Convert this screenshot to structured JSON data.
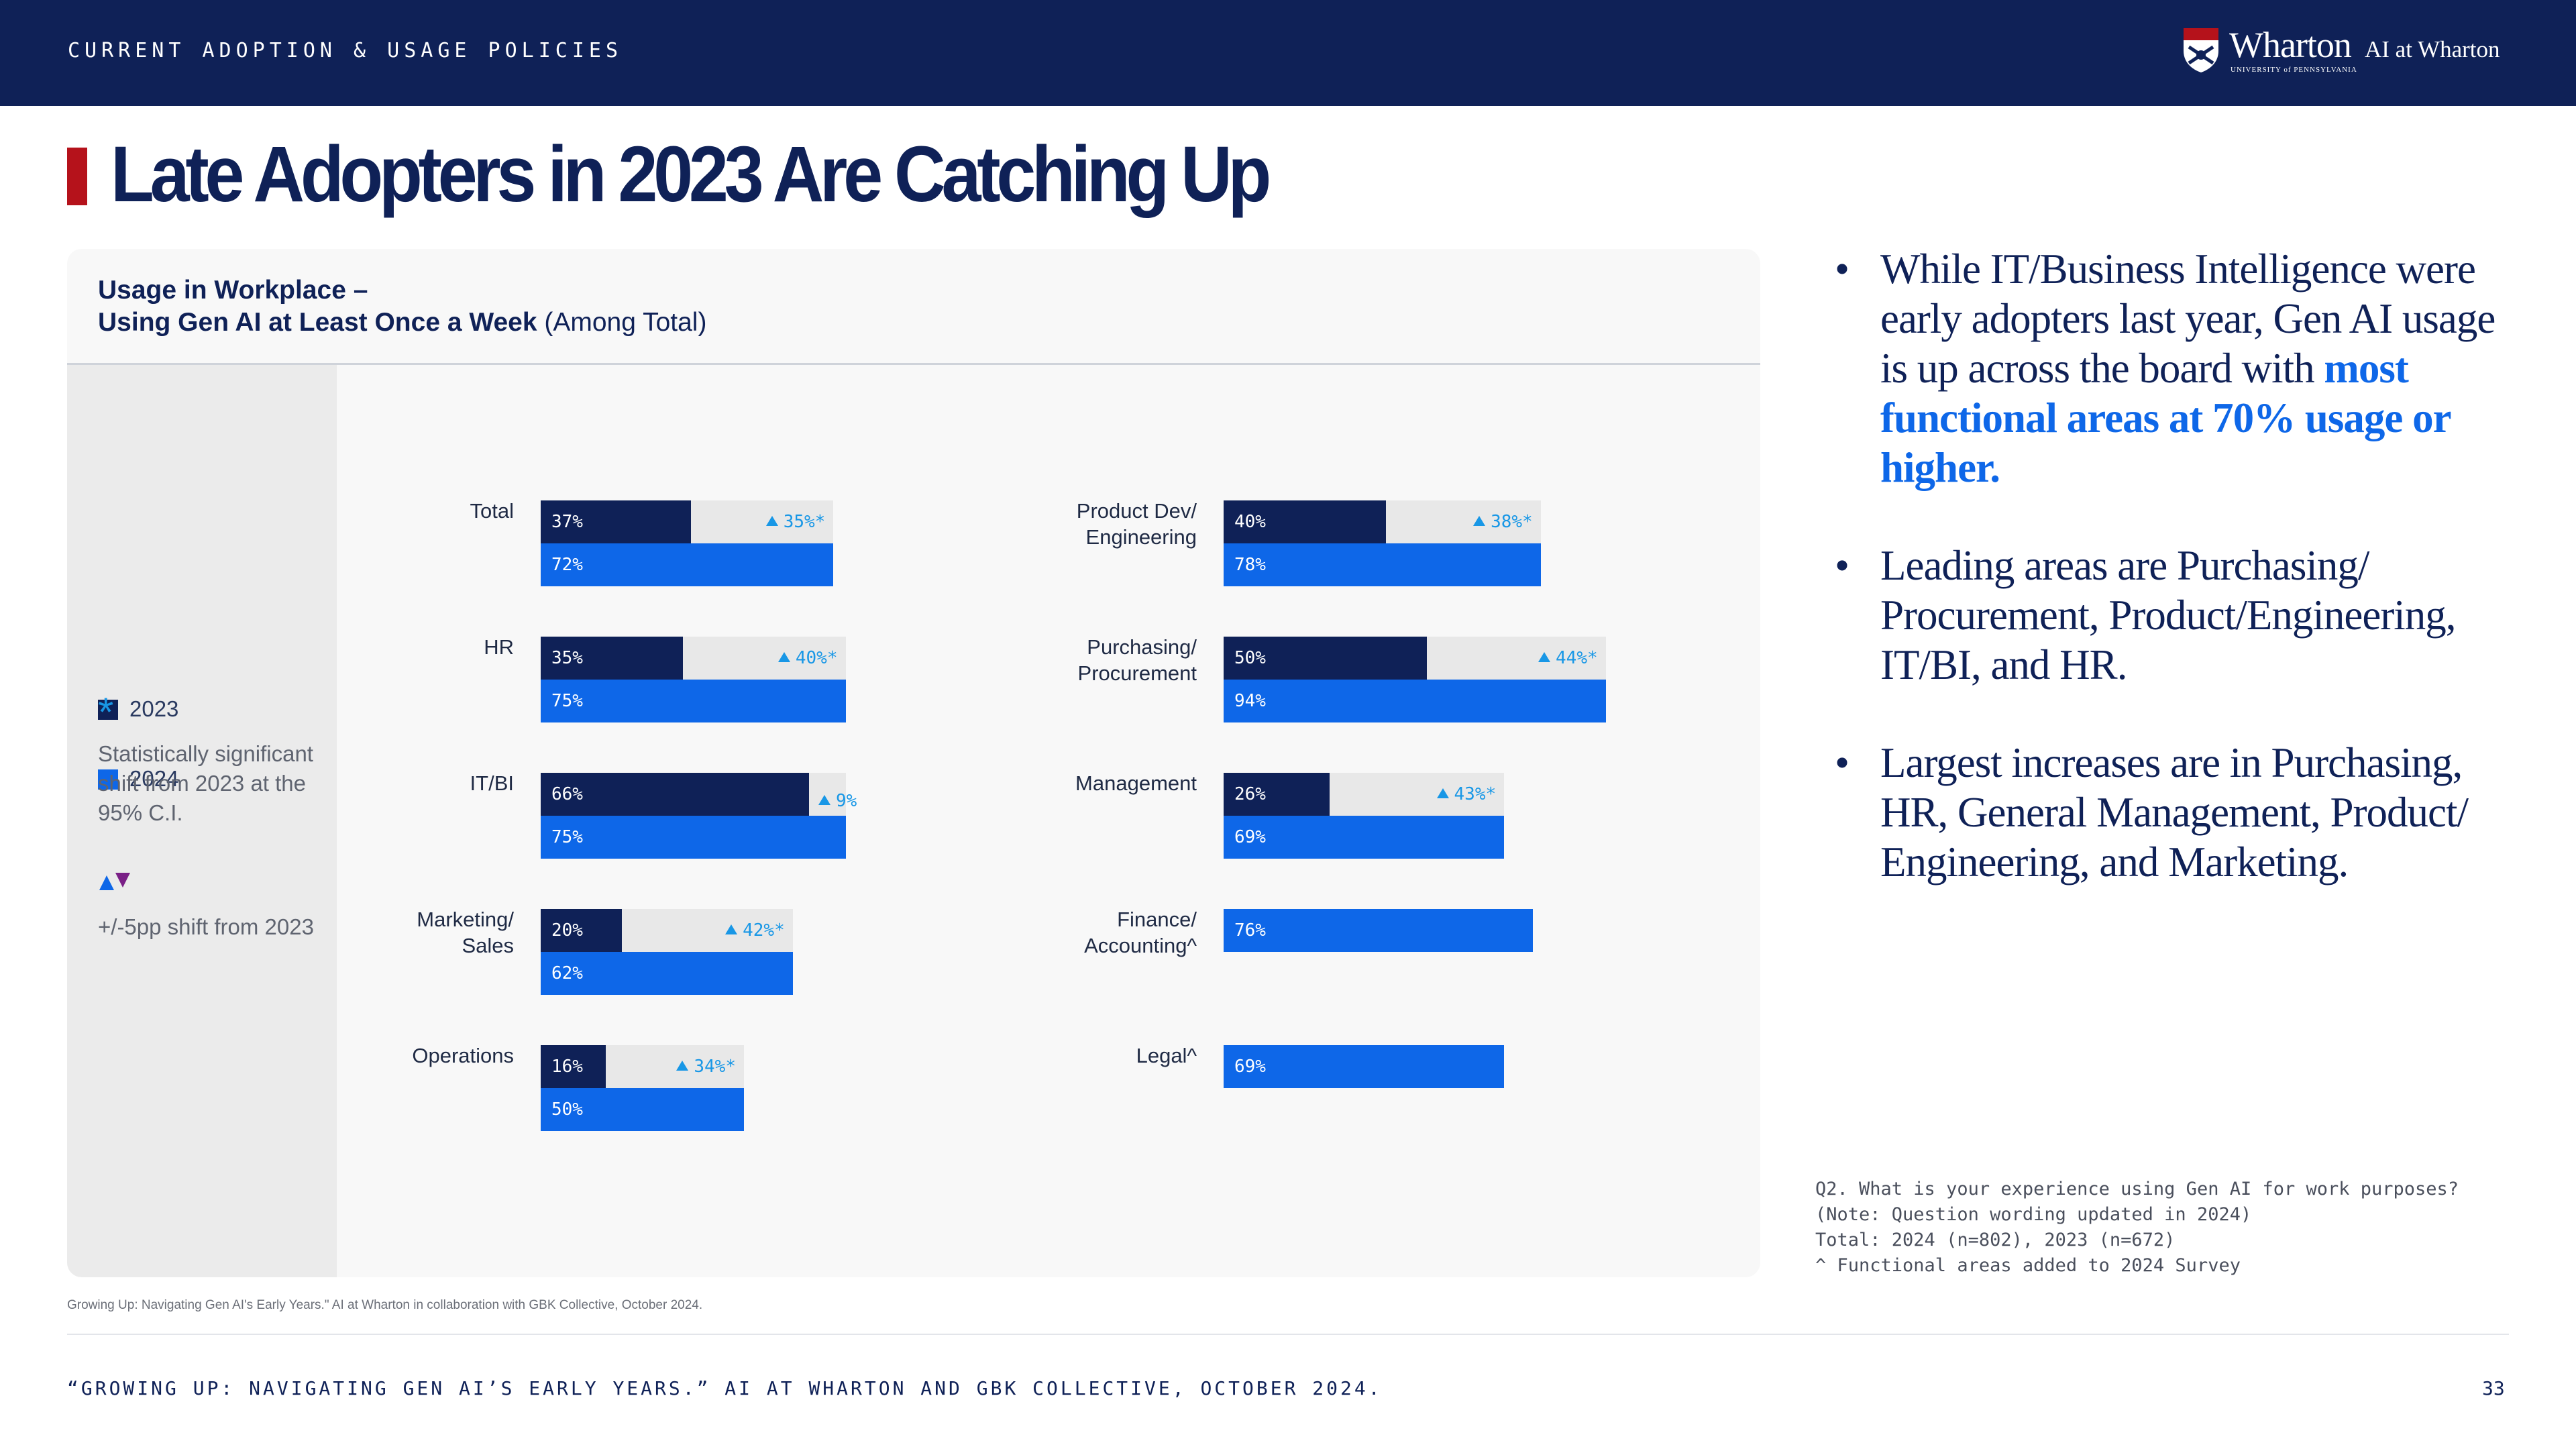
{
  "header": {
    "section_label": "CURRENT ADOPTION & USAGE POLICIES",
    "logo_wordmark": "Wharton",
    "logo_subtext": "UNIVERSITY of PENNSYLVANIA",
    "logo_tag": "AI at Wharton"
  },
  "slide_title": "Late Adopters in 2023 Are Catching Up",
  "chart_data": {
    "type": "bar",
    "title_line1": "Usage in Workplace –",
    "title_line2_bold": "Using Gen AI at Least Once a Week",
    "title_line2_rest": " (Among Total)",
    "legend": {
      "series_2023": "2023",
      "series_2024": "2024",
      "star_symbol": "*",
      "star_text": "Statistically significant shift from 2023 at the 95% C.I.",
      "triangle_text": "+/-5pp shift from 2023"
    },
    "colors": {
      "2023": "#0f2157",
      "2024": "#0e67e8",
      "shift": "#1897e6",
      "down": "#7a1f86"
    },
    "categories": [
      "Total",
      "HR",
      "IT/BI",
      "Marketing/\nSales",
      "Operations",
      "Product Dev/\nEngineering",
      "Purchasing/\nProcurement",
      "Management",
      "Finance/\nAccounting^",
      "Legal^"
    ],
    "series": [
      {
        "name": "2023",
        "values": [
          37,
          35,
          66,
          20,
          16,
          40,
          50,
          26,
          null,
          null
        ]
      },
      {
        "name": "2024",
        "values": [
          72,
          75,
          75,
          62,
          50,
          78,
          94,
          69,
          76,
          69
        ]
      }
    ],
    "shift_labels": [
      "35%*",
      "40%*",
      "9%",
      "42%*",
      "34%*",
      "38%*",
      "44%*",
      "43%*",
      "",
      ""
    ],
    "value_suffix": "%",
    "xlim": [
      0,
      100
    ]
  },
  "bullets": [
    {
      "text": "While IT/Business Intelligence were early adopters last year, Gen AI usage is up across the board with ",
      "emph": "most functional areas at 70% usage or higher."
    },
    {
      "text": "Leading areas are Purchasing/ Procurement, Product/Engineering, IT/BI, and HR.",
      "emph": ""
    },
    {
      "text": "Largest increases are in Purchasing, HR, General Management, Product/ Engineering, and Marketing.",
      "emph": ""
    }
  ],
  "bullet_symbol": "•",
  "footnote": "Q2. What is your experience using Gen AI for work purposes? (Note: Question wording updated in 2024)\nTotal: 2024 (n=802), 2023 (n=672)\n^ Functional areas added to 2024 Survey",
  "source_small": "Growing Up: Navigating Gen AI's Early Years.\" AI at Wharton in collaboration with GBK Collective, October 2024.",
  "source_footer": "“GROWING UP: NAVIGATING GEN AI’S EARLY YEARS.” AI AT WHARTON AND GBK COLLECTIVE, OCTOBER 2024.",
  "page_number": "33"
}
